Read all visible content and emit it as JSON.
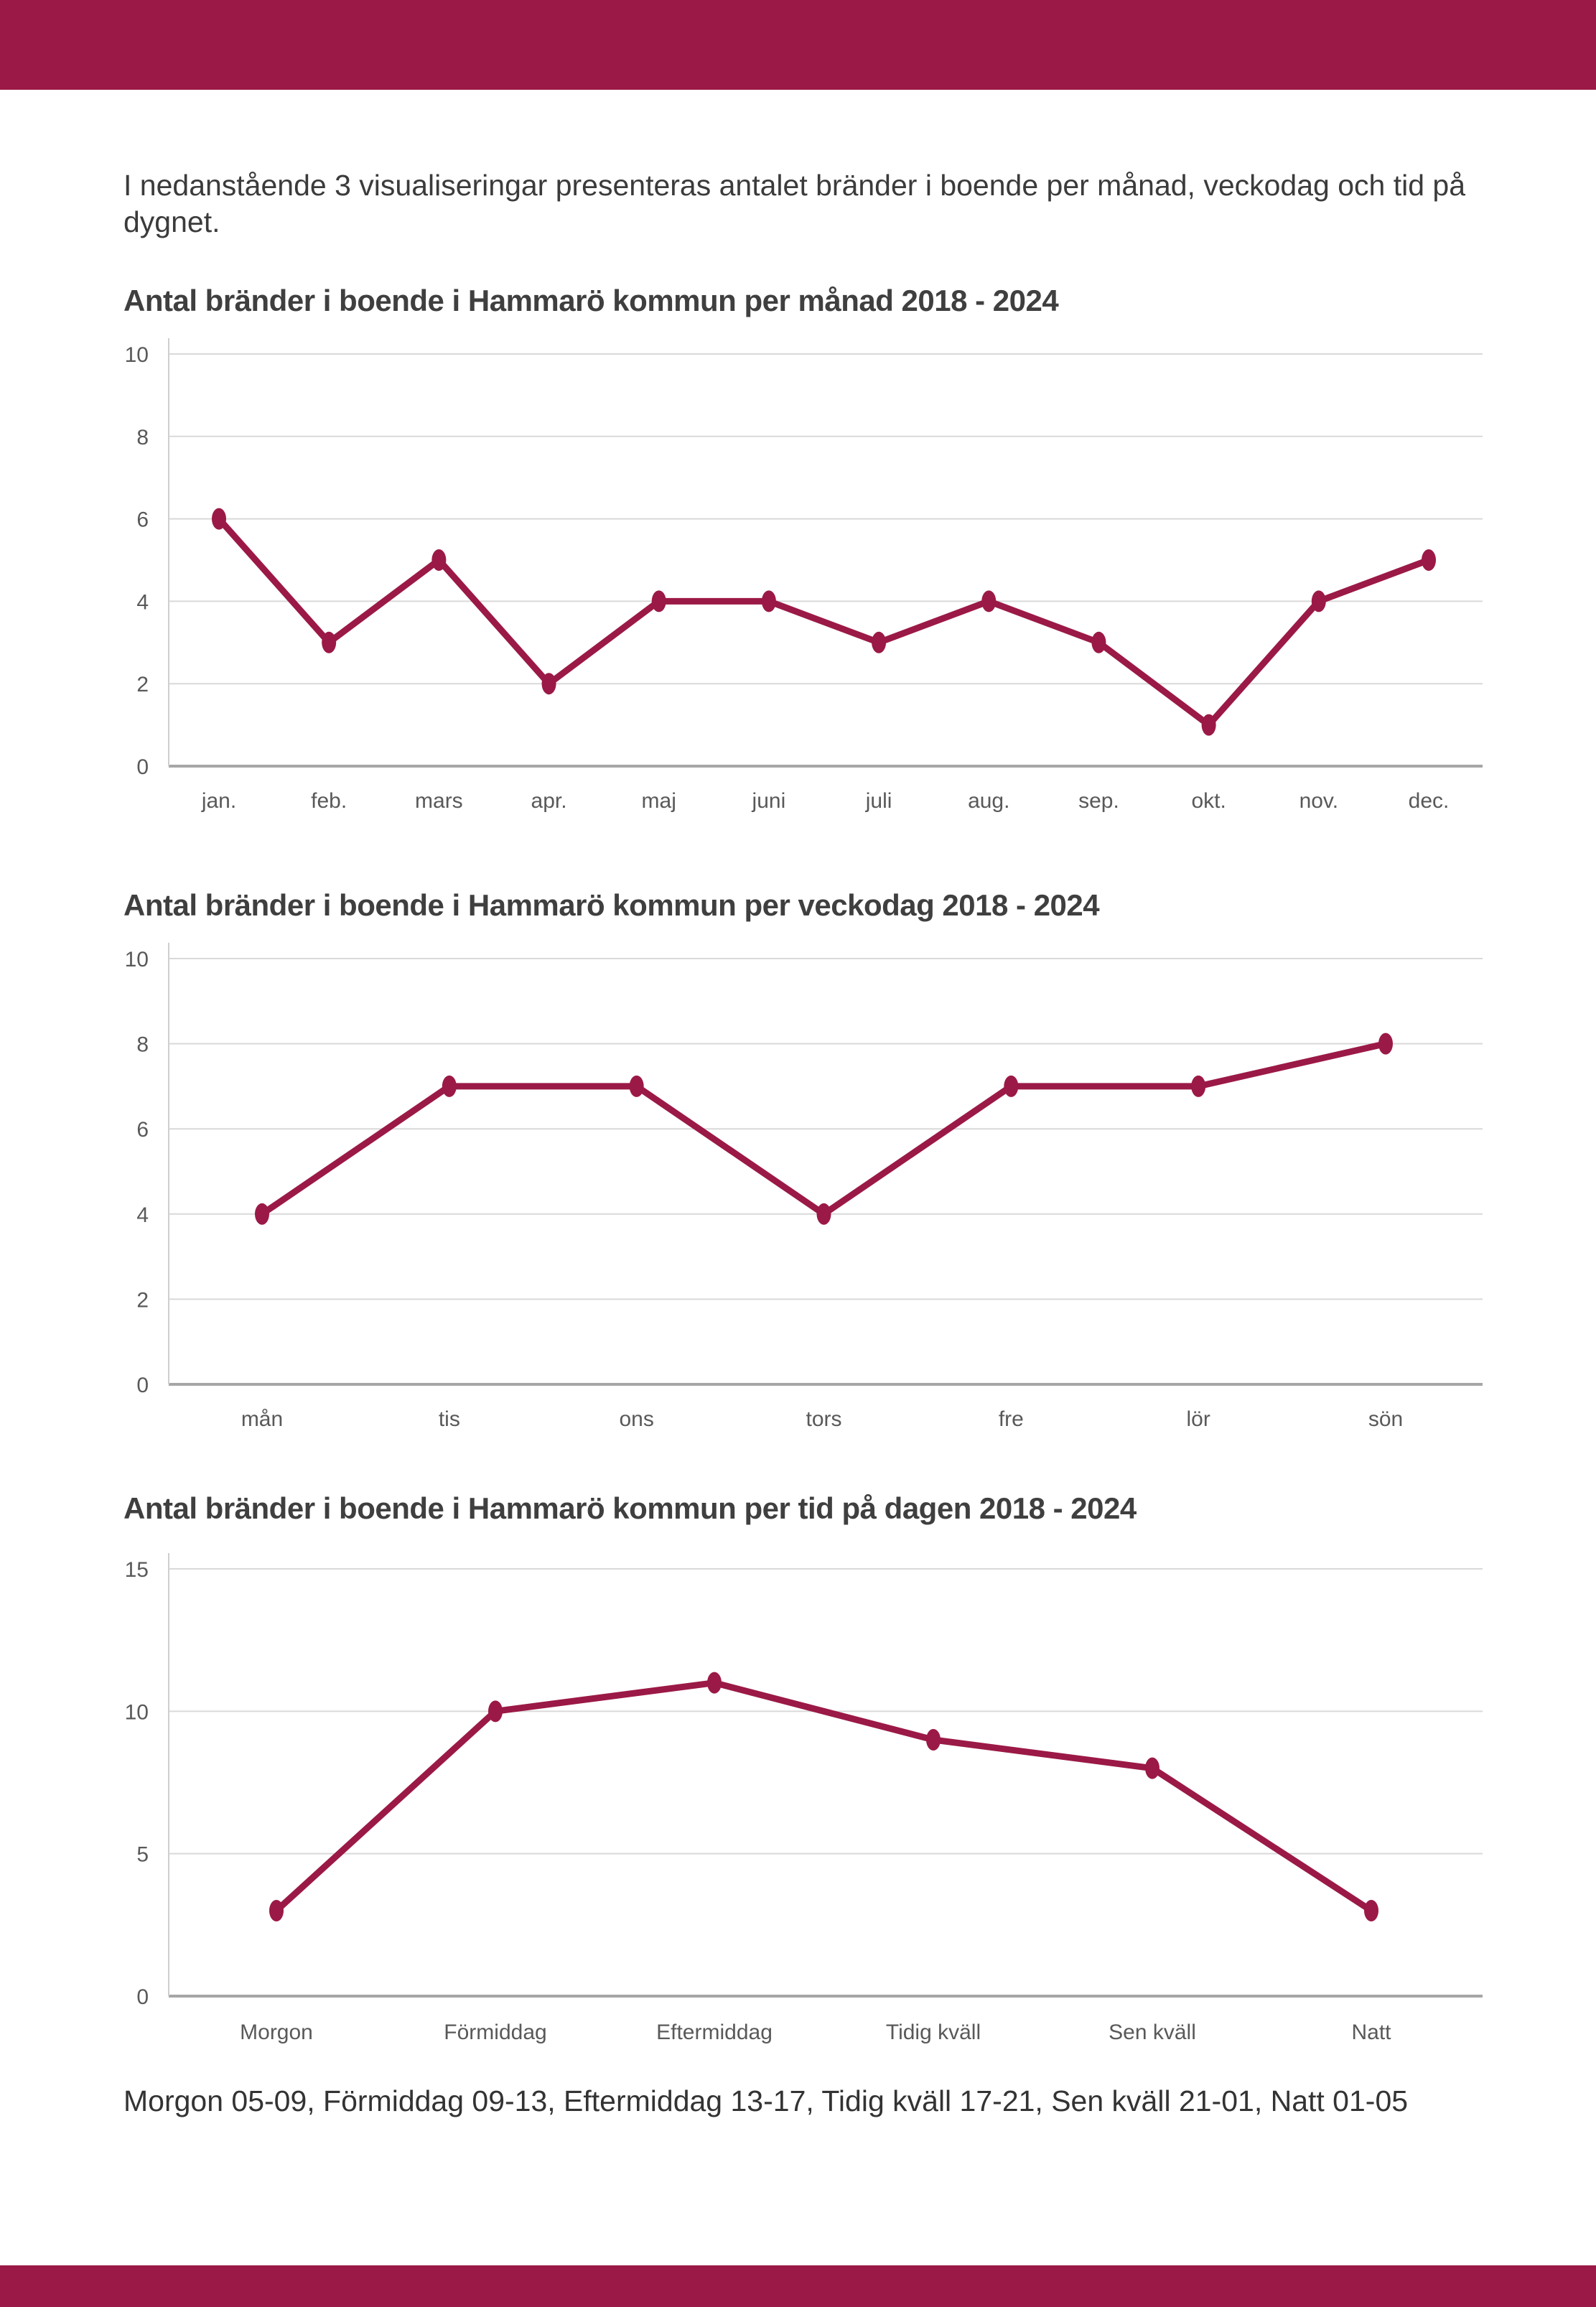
{
  "page": {
    "intro": "I nedanstående 3 visualiseringar presenteras antalet bränder i boende per månad, veckodag och tid på dygnet.",
    "footer_note": "Morgon 05-09, Förmiddag 09-13, Eftermiddag 13-17, Tidig kväll 17-21, Sen kväll 21-01, Natt 01-05",
    "accent_color": "#9B1946"
  },
  "chart_data": [
    {
      "type": "line",
      "title": "Antal bränder i boende i Hammarö kommun per månad 2018 - 2024",
      "categories": [
        "jan.",
        "feb.",
        "mars",
        "apr.",
        "maj",
        "juni",
        "juli",
        "aug.",
        "sep.",
        "okt.",
        "nov.",
        "dec."
      ],
      "values": [
        6,
        3,
        5,
        2,
        4,
        4,
        3,
        4,
        3,
        1,
        4,
        5
      ],
      "xlabel": "",
      "ylabel": "",
      "ylim": [
        0,
        10
      ],
      "yticks": [
        0,
        2,
        4,
        6,
        8,
        10
      ],
      "grid": true,
      "legend": "none",
      "line_color": "#9B1946",
      "marker": "ellipse"
    },
    {
      "type": "line",
      "title": "Antal bränder i boende i Hammarö kommun per veckodag 2018 - 2024",
      "categories": [
        "mån",
        "tis",
        "ons",
        "tors",
        "fre",
        "lör",
        "sön"
      ],
      "values": [
        4,
        7,
        7,
        4,
        7,
        7,
        8
      ],
      "xlabel": "",
      "ylabel": "",
      "ylim": [
        0,
        10
      ],
      "yticks": [
        0,
        2,
        4,
        6,
        8,
        10
      ],
      "grid": true,
      "legend": "none",
      "line_color": "#9B1946",
      "marker": "ellipse"
    },
    {
      "type": "line",
      "title": "Antal bränder i boende i Hammarö kommun per tid på dagen 2018 - 2024",
      "categories": [
        "Morgon",
        "Förmiddag",
        "Eftermiddag",
        "Tidig kväll",
        "Sen kväll",
        "Natt"
      ],
      "values": [
        3,
        10,
        11,
        9,
        8,
        3
      ],
      "xlabel": "",
      "ylabel": "",
      "ylim": [
        0,
        15
      ],
      "yticks": [
        0,
        5,
        10,
        15
      ],
      "grid": true,
      "legend": "none",
      "line_color": "#9B1946",
      "marker": "ellipse"
    }
  ]
}
